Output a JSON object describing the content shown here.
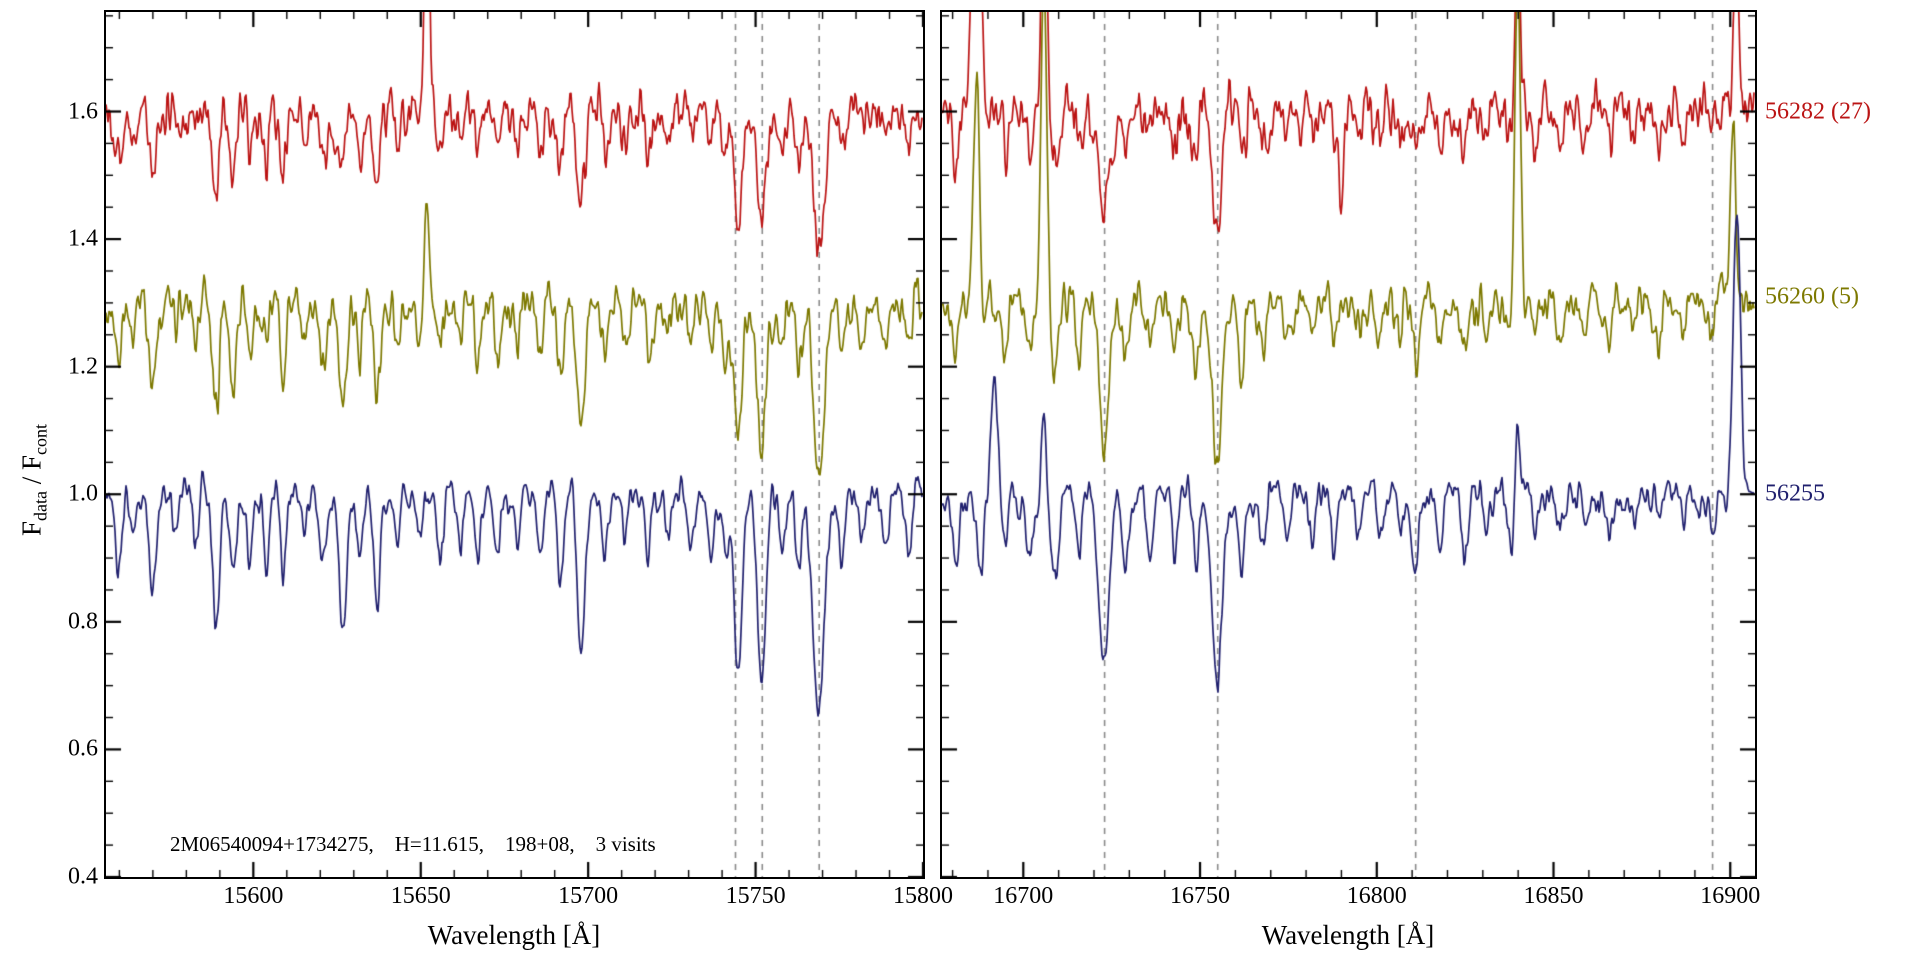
{
  "figure": {
    "background": "#ffffff"
  },
  "chart_data": {
    "type": "line",
    "title": "",
    "xlabel": "Wavelength [Å]",
    "ylabel": {
      "prefix": "F",
      "sub1": "data",
      "mid": " / F",
      "sub2": "cont"
    },
    "annotation": "2M06540094+1734275,    H=11.615,    198+08,    3 visits",
    "dashed_color": "#8a8a8a",
    "axis_color": "#000000",
    "y_axis": {
      "min": 0.4,
      "max": 1.756,
      "major_ticks": [
        0.4,
        0.6,
        0.8,
        1.0,
        1.2,
        1.4,
        1.6
      ],
      "minor_step": 0.05
    },
    "panels": [
      {
        "x_min": 15556,
        "x_max": 15800,
        "x_major_ticks": [
          15600,
          15650,
          15700,
          15750,
          15800
        ],
        "x_minor_step": 10,
        "dashed_lines": [
          15744,
          15752,
          15769
        ],
        "absorption_lines": [
          [
            15560,
            0.12,
            1.0
          ],
          [
            15564,
            0.08,
            0.8
          ],
          [
            15570,
            0.15,
            1.0
          ],
          [
            15577,
            0.07,
            0.8
          ],
          [
            15583,
            0.09,
            0.8
          ],
          [
            15589,
            0.2,
            1.0
          ],
          [
            15594,
            0.13,
            0.9
          ],
          [
            15599,
            0.1,
            0.8
          ],
          [
            15604,
            0.09,
            0.8
          ],
          [
            15609,
            0.13,
            0.9
          ],
          [
            15615,
            0.07,
            0.8
          ],
          [
            15621,
            0.13,
            1.0
          ],
          [
            15627,
            0.21,
            1.1
          ],
          [
            15632,
            0.1,
            0.8
          ],
          [
            15637,
            0.19,
            1.0
          ],
          [
            15643,
            0.08,
            0.8
          ],
          [
            15650,
            0.07,
            0.8
          ],
          [
            15656,
            0.09,
            0.9
          ],
          [
            15662,
            0.08,
            0.8
          ],
          [
            15667,
            0.11,
            0.9
          ],
          [
            15673,
            0.1,
            0.9
          ],
          [
            15679,
            0.07,
            0.8
          ],
          [
            15686,
            0.1,
            0.9
          ],
          [
            15692,
            0.14,
            0.9
          ],
          [
            15698,
            0.24,
            1.2
          ],
          [
            15705,
            0.09,
            0.8
          ],
          [
            15711,
            0.07,
            0.8
          ],
          [
            15718,
            0.11,
            0.9
          ],
          [
            15724,
            0.07,
            0.8
          ],
          [
            15731,
            0.08,
            0.8
          ],
          [
            15737,
            0.09,
            0.8
          ],
          [
            15741,
            0.11,
            0.8
          ],
          [
            15745,
            0.27,
            1.3
          ],
          [
            15752,
            0.29,
            1.3
          ],
          [
            15758,
            0.08,
            0.8
          ],
          [
            15763,
            0.1,
            0.9
          ],
          [
            15769,
            0.35,
            1.6
          ],
          [
            15776,
            0.11,
            0.9
          ],
          [
            15782,
            0.07,
            0.8
          ],
          [
            15789,
            0.08,
            0.8
          ],
          [
            15796,
            0.09,
            0.8
          ]
        ]
      },
      {
        "x_min": 16677,
        "x_max": 16907,
        "x_major_ticks": [
          16700,
          16750,
          16800,
          16850,
          16900
        ],
        "x_minor_step": 10,
        "dashed_lines": [
          16723,
          16755,
          16811,
          16895
        ],
        "absorption_lines": [
          [
            16681,
            0.1,
            0.9
          ],
          [
            16688,
            0.13,
            1.0
          ],
          [
            16695,
            0.08,
            0.8
          ],
          [
            16702,
            0.1,
            0.9
          ],
          [
            16709,
            0.14,
            1.0
          ],
          [
            16716,
            0.09,
            0.8
          ],
          [
            16723,
            0.27,
            1.4
          ],
          [
            16729,
            0.12,
            0.9
          ],
          [
            16736,
            0.08,
            0.8
          ],
          [
            16743,
            0.09,
            0.8
          ],
          [
            16749,
            0.12,
            0.9
          ],
          [
            16755,
            0.3,
            1.4
          ],
          [
            16762,
            0.12,
            0.9
          ],
          [
            16768,
            0.09,
            0.8
          ],
          [
            16775,
            0.07,
            0.8
          ],
          [
            16782,
            0.06,
            0.8
          ],
          [
            16788,
            0.07,
            0.8
          ],
          [
            16795,
            0.06,
            0.8
          ],
          [
            16801,
            0.07,
            0.8
          ],
          [
            16807,
            0.06,
            0.8
          ],
          [
            16811,
            0.1,
            0.9
          ],
          [
            16818,
            0.08,
            0.8
          ],
          [
            16825,
            0.1,
            0.9
          ],
          [
            16831,
            0.07,
            0.8
          ],
          [
            16838,
            0.09,
            0.8
          ],
          [
            16845,
            0.06,
            0.8
          ],
          [
            16852,
            0.07,
            0.8
          ],
          [
            16859,
            0.06,
            0.8
          ],
          [
            16866,
            0.08,
            0.8
          ],
          [
            16873,
            0.05,
            0.8
          ],
          [
            16880,
            0.06,
            0.8
          ],
          [
            16887,
            0.05,
            0.8
          ],
          [
            16895,
            0.06,
            0.8
          ],
          [
            16902,
            0.05,
            0.8
          ]
        ]
      }
    ],
    "series": [
      {
        "name": "56282 (27)",
        "color": "#bb1414",
        "offset": 1.6,
        "line_strength": 0.62,
        "noise": 0.028,
        "seed": 101,
        "label_value": 1.6,
        "emission_by_panel": [
          [
            [
              15628,
              0.1,
              0.7
            ],
            [
              15652,
              0.5,
              0.7
            ]
          ],
          [
            [
              16687,
              0.65,
              1.1
            ],
            [
              16706,
              0.35,
              0.8
            ],
            [
              16790,
              -0.2,
              0.6
            ],
            [
              16840,
              0.28,
              0.7
            ],
            [
              16902,
              0.28,
              0.8
            ]
          ]
        ]
      },
      {
        "name": "56260 (5)",
        "color": "#7d7900",
        "offset": 1.3,
        "line_strength": 0.82,
        "noise": 0.022,
        "seed": 202,
        "label_value": 1.31,
        "emission_by_panel": [
          [
            [
              15652,
              0.18,
              0.7
            ]
          ],
          [
            [
              16687,
              0.42,
              0.9
            ],
            [
              16706,
              0.5,
              0.8
            ],
            [
              16840,
              0.5,
              0.8
            ],
            [
              16901,
              0.32,
              0.8
            ]
          ]
        ]
      },
      {
        "name": "56255",
        "color": "#20206e",
        "offset": 1.0,
        "line_strength": 1.0,
        "noise": 0.016,
        "seed": 303,
        "label_value": 1.0,
        "emission_by_panel": [
          [],
          [
            [
              16692,
              0.18,
              0.8
            ],
            [
              16706,
              0.14,
              0.7
            ],
            [
              16840,
              0.12,
              0.7
            ],
            [
              16902,
              0.5,
              1.0
            ]
          ]
        ]
      }
    ]
  }
}
